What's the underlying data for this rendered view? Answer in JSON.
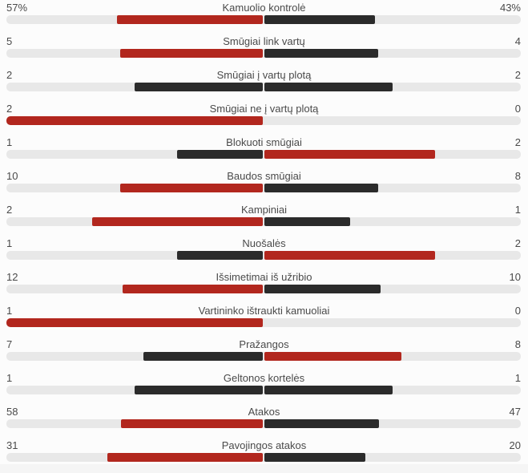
{
  "colors": {
    "leading_bar": "#b2271e",
    "trailing_bar": "#2b2b2b",
    "track": "#e8e8e8",
    "panel_bg": "#fcfcfc",
    "footer_bg": "#f5f5f5",
    "text": "#4a4a4a"
  },
  "stats": {
    "rows": [
      {
        "label": "Kamuolio kontrolė",
        "left": "57%",
        "right": "43%"
      },
      {
        "label": "Smūgiai link vartų",
        "left": "5",
        "right": "4"
      },
      {
        "label": "Smūgiai į vartų plotą",
        "left": "2",
        "right": "2"
      },
      {
        "label": "Smūgiai ne į vartų plotą",
        "left": "2",
        "right": "0"
      },
      {
        "label": "Blokuoti smūgiai",
        "left": "1",
        "right": "2"
      },
      {
        "label": "Baudos smūgiai",
        "left": "10",
        "right": "8"
      },
      {
        "label": "Kampiniai",
        "left": "2",
        "right": "1"
      },
      {
        "label": "Nuošalės",
        "left": "1",
        "right": "2"
      },
      {
        "label": "Išsimetimai iš užribio",
        "left": "12",
        "right": "10"
      },
      {
        "label": "Vartininko ištraukti kamuoliai",
        "left": "1",
        "right": "0"
      },
      {
        "label": "Pražangos",
        "left": "7",
        "right": "8"
      },
      {
        "label": "Geltonos kortelės",
        "left": "1",
        "right": "1"
      },
      {
        "label": "Atakos",
        "left": "58",
        "right": "47"
      },
      {
        "label": "Pavojingos atakos",
        "left": "31",
        "right": "20"
      }
    ]
  },
  "chart_data": {
    "type": "bar",
    "subtype": "paired-horizontal-comparison",
    "title": "",
    "categories": [
      "Kamuolio kontrolė",
      "Smūgiai link vartų",
      "Smūgiai į vartų plotą",
      "Smūgiai ne į vartų plotą",
      "Blokuoti smūgiai",
      "Baudos smūgiai",
      "Kampiniai",
      "Nuošalės",
      "Išsimetimai iš užribio",
      "Vartininko ištraukti kamuoliai",
      "Pražangos",
      "Geltonos kortelės",
      "Atakos",
      "Pavojingos atakos"
    ],
    "series": [
      {
        "name": "home",
        "side": "left",
        "values": [
          57,
          5,
          2,
          2,
          1,
          10,
          2,
          1,
          12,
          1,
          7,
          1,
          58,
          31
        ]
      },
      {
        "name": "away",
        "side": "right",
        "values": [
          43,
          4,
          2,
          0,
          2,
          8,
          1,
          2,
          10,
          0,
          8,
          1,
          47,
          20
        ]
      }
    ],
    "value_format_note": "first row shown as percentages (57% / 43%), others as counts",
    "bar_rule": "bar length = value / (left+right) of that row, drawn outward from center; higher side colored red, lower or tied side colored dark gray",
    "legend": "none",
    "grid": false
  }
}
